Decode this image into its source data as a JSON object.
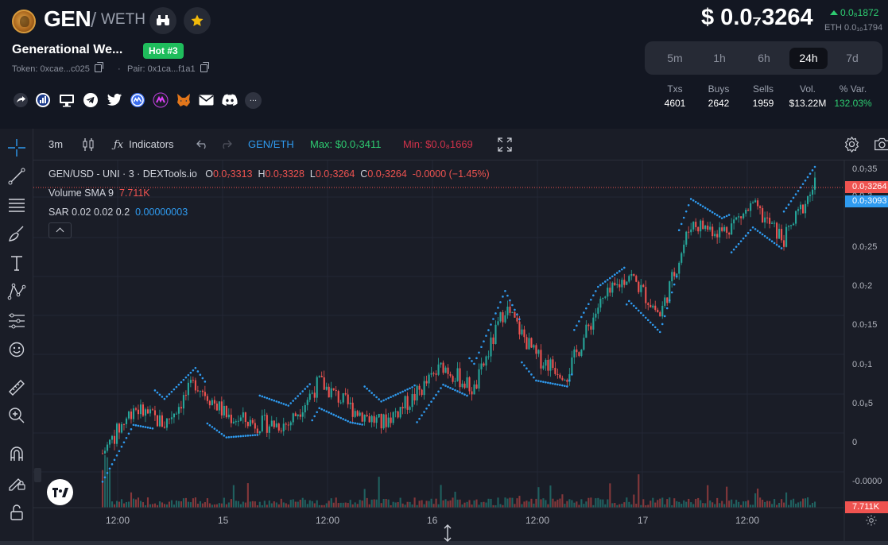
{
  "token": {
    "symbol": "GEN",
    "quote": "WETH",
    "name": "Generational We...",
    "hot_badge": "Hot #3",
    "token_address": "Token: 0xcae...c025",
    "pair_address": "Pair: 0x1ca...f1a1",
    "separator": "/",
    "dot": "·"
  },
  "header_icons": [
    "binoculars-icon",
    "star-icon"
  ],
  "social_icons": [
    "share-icon",
    "chart-icon",
    "website-icon",
    "telegram-icon",
    "twitter-icon",
    "coinmarketcap-icon",
    "dextools-icon",
    "metamask-icon",
    "email-icon",
    "discord-icon"
  ],
  "social_more": "...",
  "price": {
    "usd": "$ 0.0₇3264",
    "change": "0.0₈1872",
    "eth": "ETH 0.0₁₀1794"
  },
  "timeframes": [
    {
      "label": "5m",
      "active": false
    },
    {
      "label": "1h",
      "active": false
    },
    {
      "label": "6h",
      "active": false
    },
    {
      "label": "24h",
      "active": true
    },
    {
      "label": "7d",
      "active": false
    }
  ],
  "stats": [
    {
      "label": "Txs",
      "value": "4601",
      "green": false
    },
    {
      "label": "Buys",
      "value": "2642",
      "green": false
    },
    {
      "label": "Sells",
      "value": "1959",
      "green": false
    },
    {
      "label": "Vol.",
      "value": "$13.22M",
      "green": false
    },
    {
      "label": "% Var.",
      "value": "132.03%",
      "green": true
    }
  ],
  "chart_toolbar": {
    "interval": "3m",
    "indicators_label": "Indicators",
    "pair": "GEN/ETH",
    "max": "Max: $0.0₇3411",
    "min": "Min: $0.0₈1669"
  },
  "legend": {
    "title": "GEN/USD - UNI · 3 · DEXTools.io",
    "o": "0.0₇3313",
    "h": "0.0₇3328",
    "l": "0.0₇3264",
    "c": "0.0₇3264",
    "change": "-0.0000 (−1.45%)",
    "volume_label": "Volume SMA 9",
    "volume_value": "7.711K",
    "sar_label": "SAR 0.02 0.02 0.2",
    "sar_value": "0.00000003",
    "o_key": "O",
    "h_key": "H",
    "l_key": "L",
    "c_key": "C"
  },
  "colors": {
    "up": "#26a69a",
    "down": "#ef5350",
    "sar": "#2f9bf0",
    "accent_green": "#2ecc71",
    "background": "#131722"
  },
  "chart_data": {
    "type": "candlestick",
    "y_ticks": [
      "0.0₇35",
      "0.0₇3",
      "0.0₇25",
      "0.0₇2",
      "0.0₇15",
      "0.0₇1",
      "0.0₈5",
      "0",
      "-0.0000"
    ],
    "x_ticks": [
      "12:00",
      "15",
      "12:00",
      "16",
      "12:00",
      "17",
      "12:00"
    ],
    "last_price_tag": "0.0₇3264",
    "sar_price_tag": "0.0₇3093",
    "volume_tag": "7.711K",
    "ylim": [
      -6e-08,
      3.55e-07
    ],
    "approx_close_path": [
      5e-09,
      6e-08,
      4e-08,
      9e-08,
      5e-08,
      4e-08,
      4e-08,
      9e-08,
      6e-08,
      4e-08,
      7e-08,
      1.1e-07,
      8e-08,
      1.8e-07,
      1.2e-07,
      1e-07,
      1.8e-07,
      2.2e-07,
      1.7e-07,
      2.8e-07,
      2.7e-07,
      3e-07,
      2.6e-07,
      3.264e-07
    ]
  }
}
